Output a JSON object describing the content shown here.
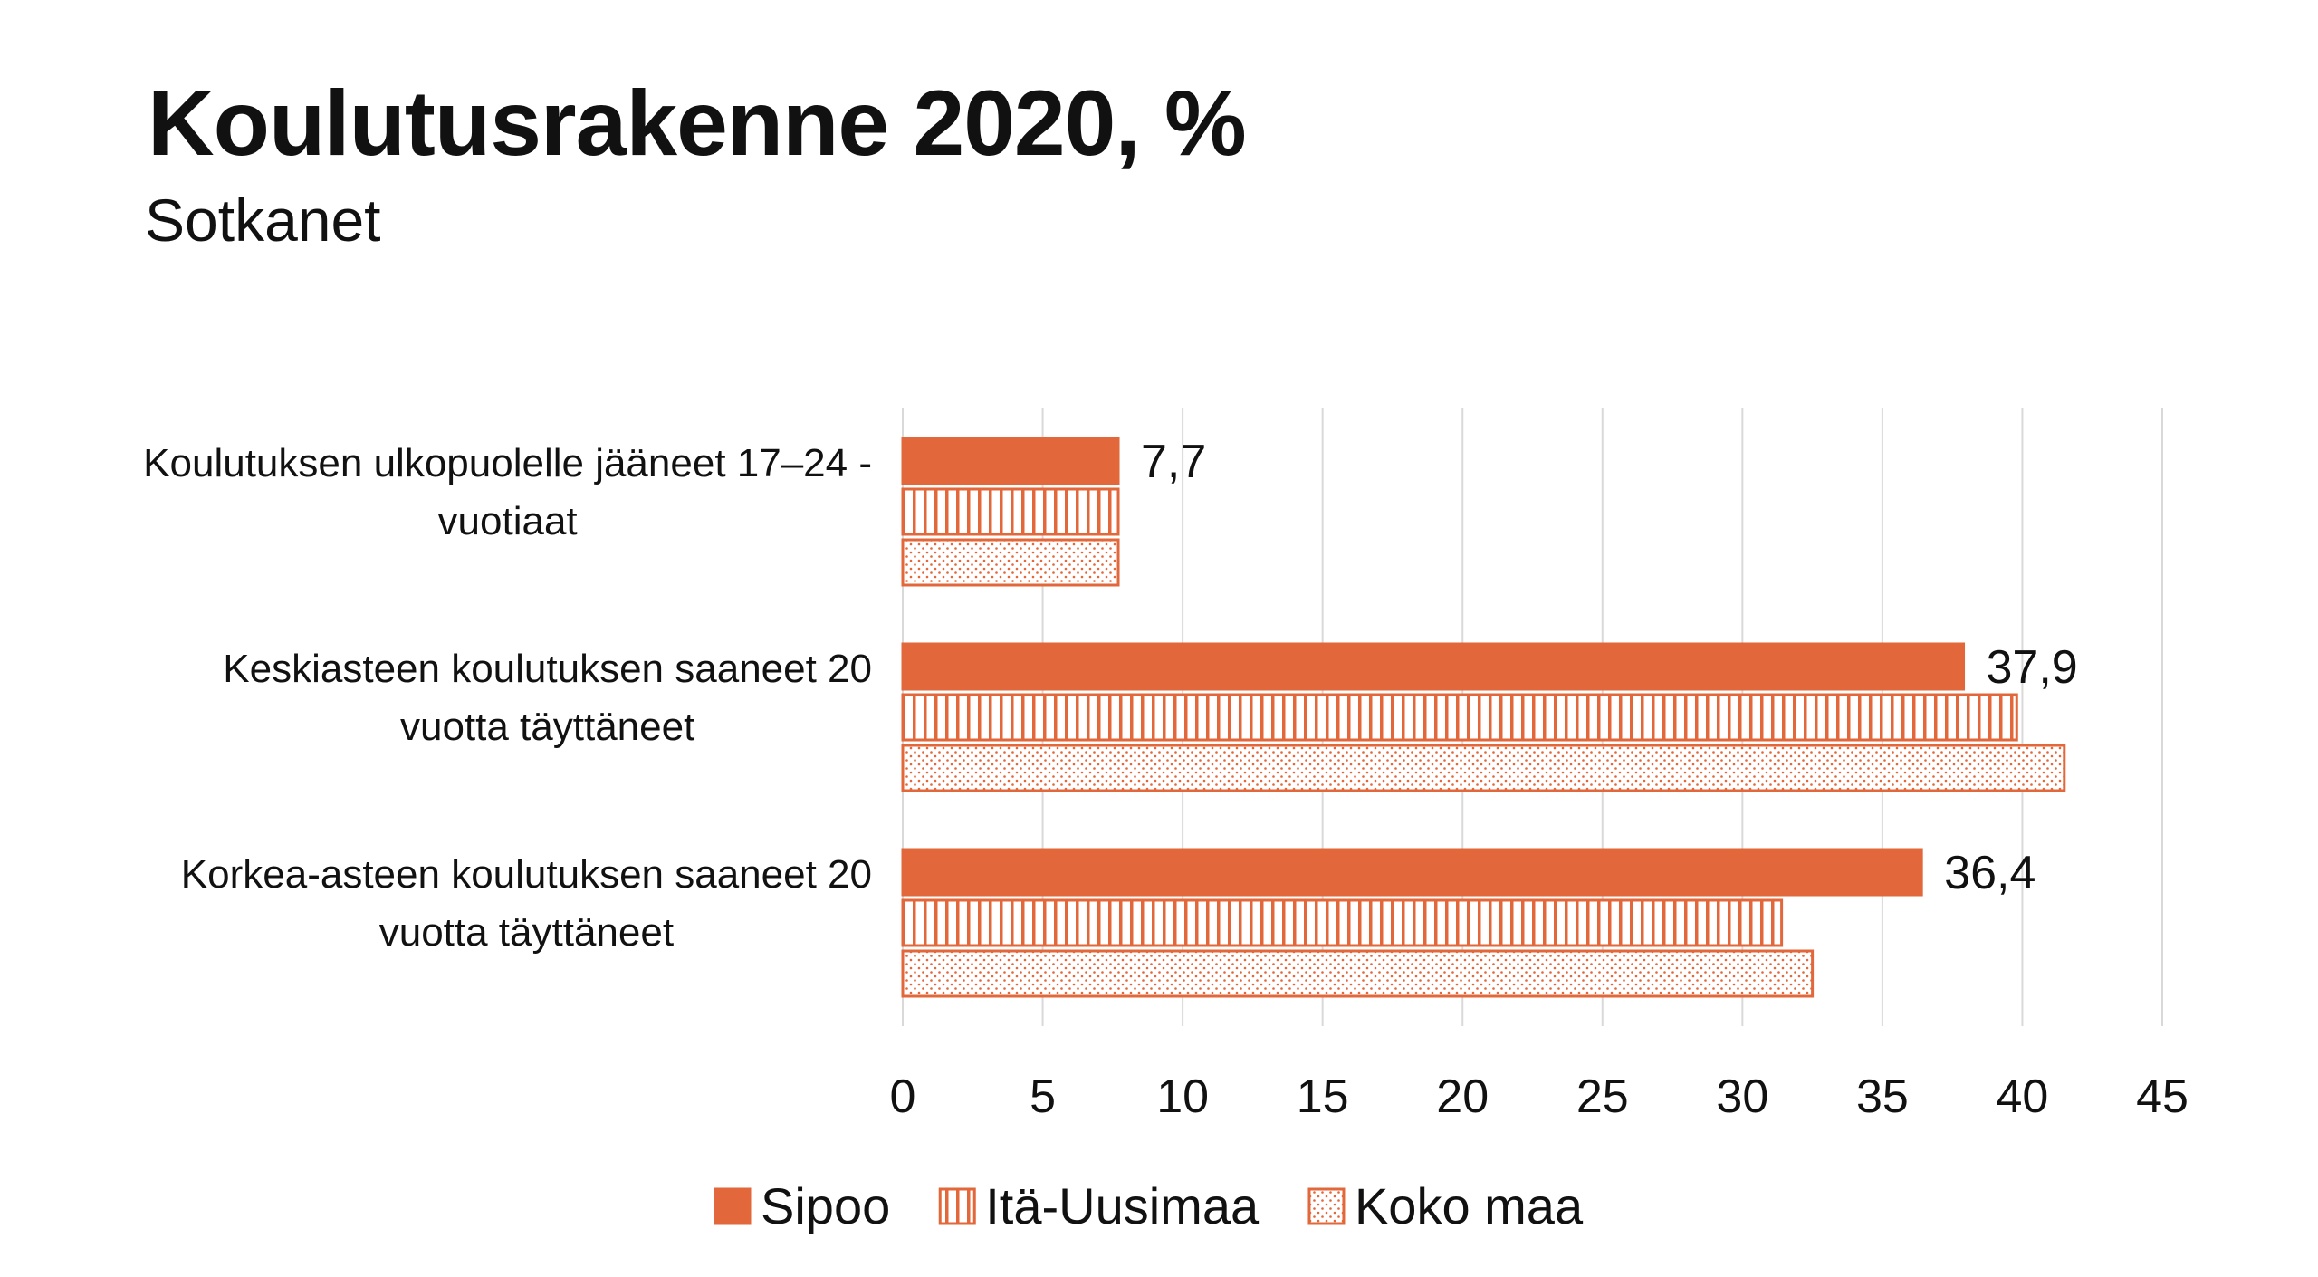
{
  "chart_data": {
    "type": "bar",
    "orientation": "horizontal",
    "title": "Koulutusrakenne 2020, %",
    "subtitle": "Sotkanet",
    "categories": [
      [
        "Koulutuksen ulkopuolelle jääneet 17–24 -",
        "vuotiaat"
      ],
      [
        "Keskiasteen koulutuksen saaneet 20",
        "vuotta täyttäneet"
      ],
      [
        "Korkea-asteen koulutuksen saaneet 20",
        "vuotta täyttäneet"
      ]
    ],
    "series": [
      {
        "name": "Sipoo",
        "values": [
          7.7,
          37.9,
          36.4
        ],
        "labels": [
          "7,7",
          "37,9",
          "36,4"
        ],
        "pattern": "solid"
      },
      {
        "name": "Itä-Uusimaa",
        "values": [
          7.7,
          39.8,
          31.4
        ],
        "pattern": "vertical-stripes"
      },
      {
        "name": "Koko maa",
        "values": [
          7.7,
          41.5,
          32.5
        ],
        "pattern": "dots"
      }
    ],
    "xlim": [
      0,
      45
    ],
    "xticks": [
      "0",
      "5",
      "10",
      "15",
      "20",
      "25",
      "30",
      "35",
      "40",
      "45"
    ],
    "grid": true,
    "legend_position": "bottom",
    "colors": {
      "accent": "#e2673a",
      "grid": "#d9d9d9"
    }
  }
}
